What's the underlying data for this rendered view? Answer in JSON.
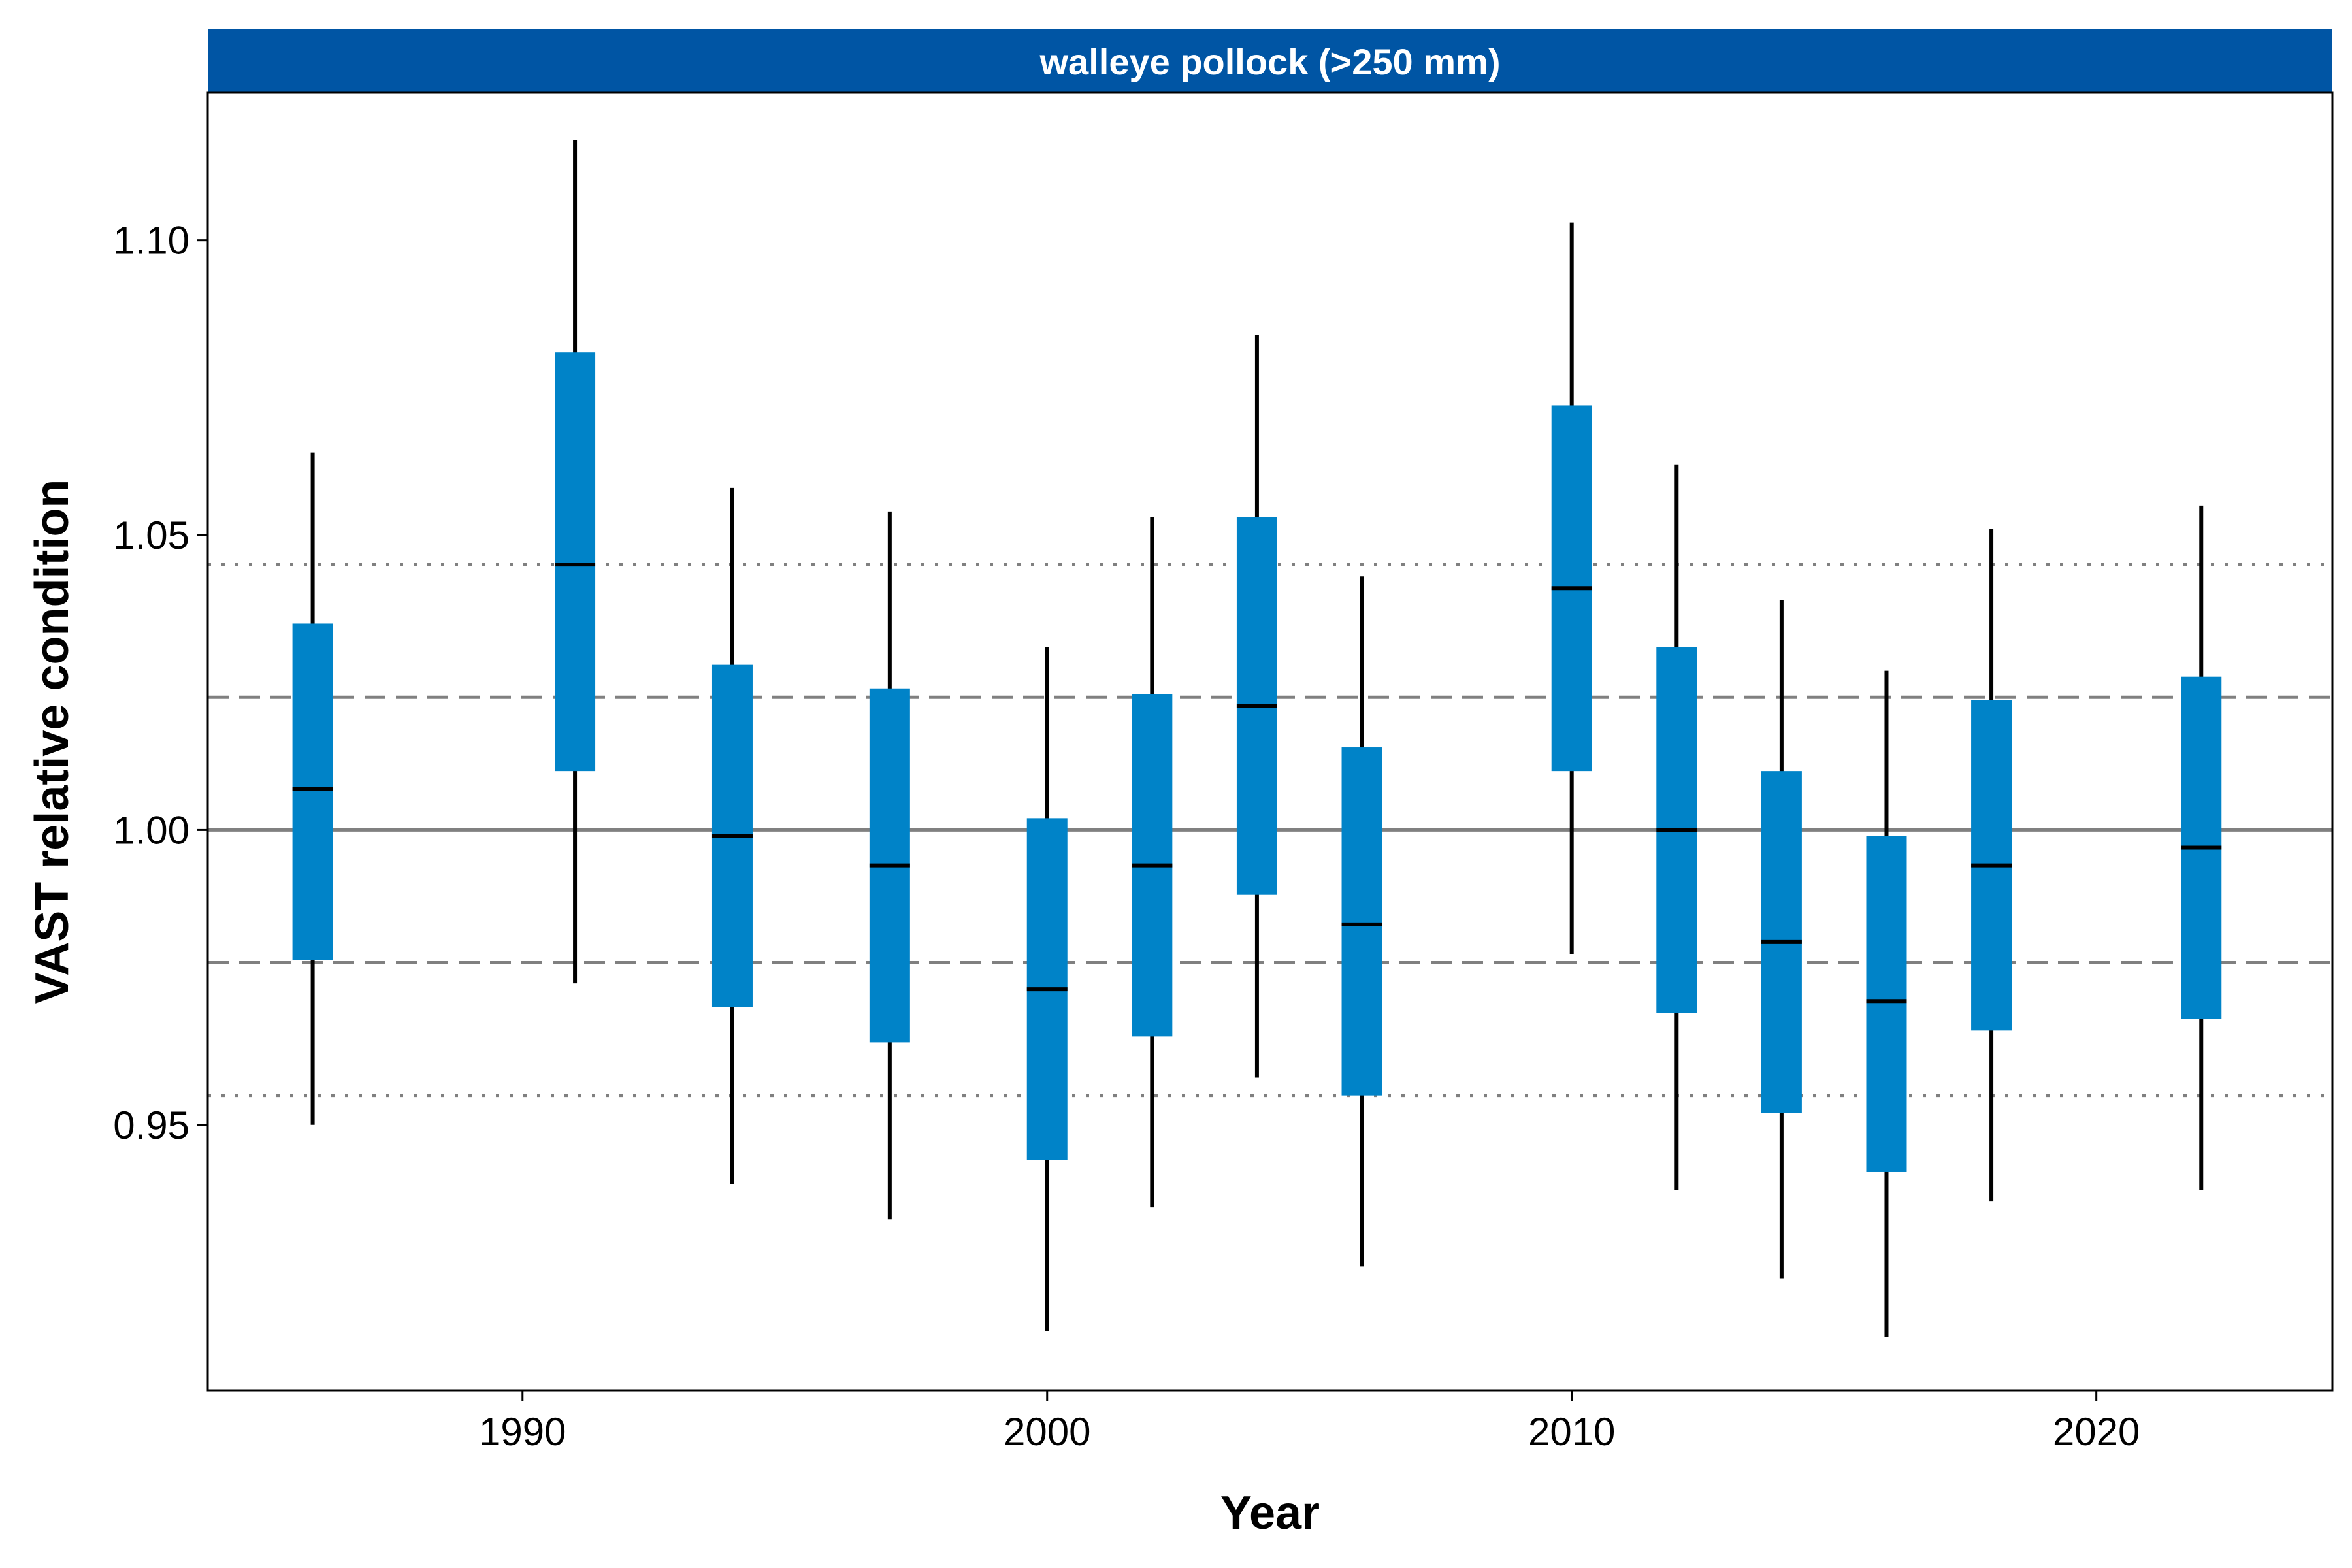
{
  "chart_data": {
    "type": "boxplot",
    "strip_title": "walleye pollock (>250 mm)",
    "xlabel": "Year",
    "ylabel": "VAST relative condition",
    "xlim": [
      1984,
      2024.5
    ],
    "ylim": [
      0.905,
      1.125
    ],
    "x_ticks": [
      1990,
      2000,
      2010,
      2020
    ],
    "y_ticks": [
      0.95,
      1.0,
      1.05,
      1.1
    ],
    "y_tick_labels": [
      "0.95",
      "1.00",
      "1.05",
      "1.10"
    ],
    "reference_lines": [
      {
        "value": 1.0,
        "style": "solid"
      },
      {
        "value": 1.0225,
        "style": "dashed"
      },
      {
        "value": 0.9775,
        "style": "dashed"
      },
      {
        "value": 1.045,
        "style": "dotted"
      },
      {
        "value": 0.955,
        "style": "dotted"
      }
    ],
    "series": [
      {
        "values": [
          {
            "year": 1986,
            "lower": 0.95,
            "q1": 0.978,
            "median": 1.007,
            "q3": 1.035,
            "upper": 1.064
          },
          {
            "year": 1991,
            "lower": 0.974,
            "q1": 1.01,
            "median": 1.045,
            "q3": 1.081,
            "upper": 1.117
          },
          {
            "year": 1994,
            "lower": 0.94,
            "q1": 0.97,
            "median": 0.999,
            "q3": 1.028,
            "upper": 1.058
          },
          {
            "year": 1997,
            "lower": 0.934,
            "q1": 0.964,
            "median": 0.994,
            "q3": 1.024,
            "upper": 1.054
          },
          {
            "year": 2000,
            "lower": 0.915,
            "q1": 0.944,
            "median": 0.973,
            "q3": 1.002,
            "upper": 1.031
          },
          {
            "year": 2002,
            "lower": 0.936,
            "q1": 0.965,
            "median": 0.994,
            "q3": 1.023,
            "upper": 1.053
          },
          {
            "year": 2004,
            "lower": 0.958,
            "q1": 0.989,
            "median": 1.021,
            "q3": 1.053,
            "upper": 1.084
          },
          {
            "year": 2006,
            "lower": 0.926,
            "q1": 0.955,
            "median": 0.984,
            "q3": 1.014,
            "upper": 1.043
          },
          {
            "year": 2010,
            "lower": 0.979,
            "q1": 1.01,
            "median": 1.041,
            "q3": 1.072,
            "upper": 1.103
          },
          {
            "year": 2012,
            "lower": 0.939,
            "q1": 0.969,
            "median": 1.0,
            "q3": 1.031,
            "upper": 1.062
          },
          {
            "year": 2014,
            "lower": 0.924,
            "q1": 0.952,
            "median": 0.981,
            "q3": 1.01,
            "upper": 1.039
          },
          {
            "year": 2016,
            "lower": 0.914,
            "q1": 0.942,
            "median": 0.971,
            "q3": 0.999,
            "upper": 1.027
          },
          {
            "year": 2018,
            "lower": 0.937,
            "q1": 0.966,
            "median": 0.994,
            "q3": 1.022,
            "upper": 1.051
          },
          {
            "year": 2022,
            "lower": 0.939,
            "q1": 0.968,
            "median": 0.997,
            "q3": 1.026,
            "upper": 1.055
          }
        ]
      }
    ],
    "grid": false,
    "colors": {
      "box_fill": "#0083C8",
      "strip_fill": "#0055A4",
      "whisker": "#000000",
      "reference": "#808080"
    }
  }
}
